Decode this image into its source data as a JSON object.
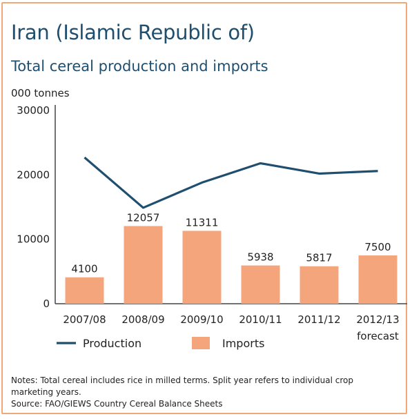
{
  "header": {
    "title": "Iran  (Islamic Republic of)",
    "subtitle": "Total cereal production and imports",
    "unit": "000 tonnes"
  },
  "notes": {
    "line1": "Notes: Total cereal includes rice in milled terms. Split year refers to individual crop marketing years.",
    "line2": "Source: FAO/GIEWS Country Cereal Balance Sheets"
  },
  "colors": {
    "production": "#1f4e6e",
    "imports": "#f4a57c",
    "border": "#f0a878",
    "axis": "#444444"
  },
  "chart_data": {
    "type": "bar",
    "categories": [
      "2007/08",
      "2008/09",
      "2009/10",
      "2010/11",
      "2011/12",
      "2012/13"
    ],
    "category_sublabels": [
      "",
      "",
      "",
      "",
      "",
      "forecast"
    ],
    "ylim": [
      0,
      30000
    ],
    "yticks": [
      0,
      10000,
      20000,
      30000
    ],
    "series": [
      {
        "name": "Imports",
        "kind": "bar",
        "values": [
          4100,
          12057,
          11311,
          5938,
          5817,
          7500
        ],
        "labels": [
          "4100",
          "12057",
          "11311",
          "5938",
          "5817",
          "7500"
        ]
      },
      {
        "name": "Production",
        "kind": "line",
        "values": [
          22700,
          14900,
          18800,
          21800,
          20200,
          20600
        ]
      }
    ],
    "legend": [
      "Production",
      "Imports"
    ],
    "legend_position": "bottom"
  }
}
